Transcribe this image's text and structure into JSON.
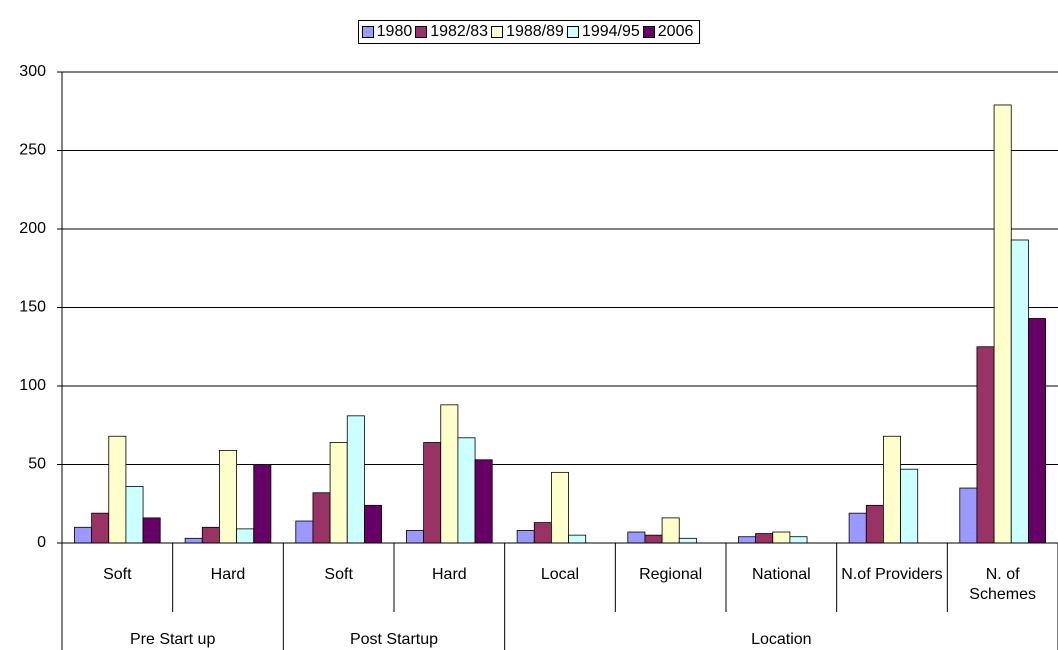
{
  "chart_data": {
    "type": "bar",
    "categories": [
      "Soft",
      "Hard",
      "Soft",
      "Hard",
      "Local",
      "Regional",
      "National",
      "N.of Providers",
      "N. of Schemes"
    ],
    "groups": [
      {
        "label": "Pre Start up",
        "span": 2
      },
      {
        "label": "Post Startup",
        "span": 2
      },
      {
        "label": "Location",
        "span": 5
      }
    ],
    "series": [
      {
        "name": "1980",
        "color": "#9999ff",
        "values": [
          10,
          3,
          14,
          8,
          8,
          7,
          4,
          19,
          35
        ]
      },
      {
        "name": "1982/83",
        "color": "#993366",
        "values": [
          19,
          10,
          32,
          64,
          13,
          5,
          6,
          24,
          125
        ]
      },
      {
        "name": "1988/89",
        "color": "#ffffcc",
        "values": [
          68,
          59,
          64,
          88,
          45,
          16,
          7,
          68,
          279
        ]
      },
      {
        "name": "1994/95",
        "color": "#ccffff",
        "values": [
          36,
          9,
          81,
          67,
          5,
          3,
          4,
          47,
          193
        ]
      },
      {
        "name": "2006",
        "color": "#660066",
        "values": [
          16,
          50,
          24,
          53,
          null,
          null,
          null,
          null,
          143
        ]
      }
    ],
    "ylim": [
      0,
      300
    ],
    "yticks": [
      0,
      50,
      100,
      150,
      200,
      250,
      300
    ],
    "grid": true
  }
}
